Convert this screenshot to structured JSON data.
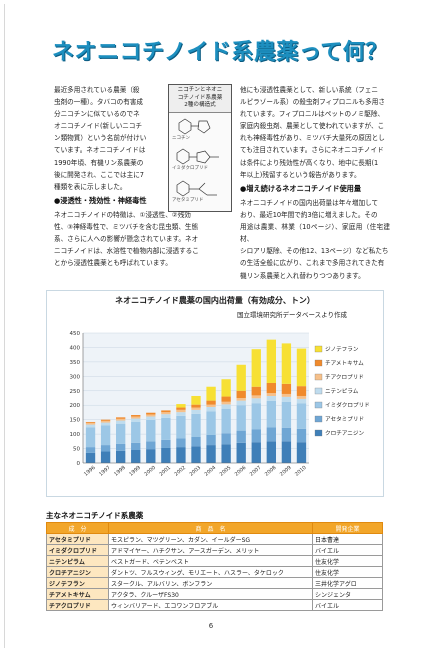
{
  "title": "ネオニコチノイド系農薬って何？",
  "left_paragraph_1": [
    "最近多用されている農薬（殺",
    "虫剤の一種）。タバコの有害成",
    "分ニコチンに似ているのでネ",
    "オニコチノイド(新しいニコチ",
    "ン類物質）という名前が付けい",
    "ています。ネオニコチノイドは",
    "1990年頃、有機リン系農薬の",
    "後に開発され、ここでは主に7",
    "種類を表に示しました。"
  ],
  "figure": {
    "title_lines": [
      "ニコチンとネオニ",
      "コチノイド系農薬",
      "2種の構造式"
    ],
    "labels": [
      "ニコチン",
      "イミダクロプリド",
      "アセタミプリド"
    ]
  },
  "heading_1": "●浸透性・残効性・神経毒性",
  "left_paragraph_2": [
    "ネオニコチノイドの特徴は、①浸透性、②残効",
    "性、③神経毒性で、ミツバチを含む昆虫類、生態",
    "系、さらに人への影響が懸念されています。ネオ",
    "ニコチノイドは、水溶性で植物内部に浸透するこ",
    "とから浸透性農薬とも呼ばれています。"
  ],
  "right_paragraph_1": [
    "他にも浸透性農薬として、新しい系統（フェニ",
    "ルピラゾール系）の殺虫剤フィプロニルも多用さ",
    "れています。フィプロニルはペットのノミ駆除、",
    "家庭内殺虫剤、農薬として使われていますが、こ",
    "れも神経毒性があり、ミツバチ大量死の原因とし",
    "ても注目されています。さらにネオニコチノイド",
    "は条件により残効性が高くなり、地中に長期(1",
    "年以上)残留するという報告があります。"
  ],
  "heading_2": "●増え続けるネオニコチノイド使用量",
  "right_paragraph_2": [
    "ネオニコチノイドの国内出荷量は年々増加して",
    "おり、最近10年間で約3倍に増えました。その",
    "用途は農業、林業（10ページ）、家庭用（住宅建材、",
    "シロアリ駆除、その他12、13ページ）など私たち",
    "の生活全般に広がり、これまで多用されてきた有",
    "機リン系農薬と入れ替わりつつあります。"
  ],
  "chart_data": {
    "type": "bar",
    "stacked": true,
    "title": "ネオニコチノイド農薬の国内出荷量（有効成分、トン）",
    "subtitle": "国立環境研究所データベースより作成",
    "categories": [
      "1996",
      "1997",
      "1998",
      "1999",
      "2000",
      "2001",
      "2002",
      "2003",
      "2004",
      "2005",
      "2006",
      "2007",
      "2008",
      "2009",
      "2010"
    ],
    "ylim": [
      0,
      450
    ],
    "yticks": [
      "0",
      "50",
      "100",
      "150",
      "200",
      "250",
      "300",
      "350",
      "400",
      "450"
    ],
    "grid": true,
    "legend_position": "right",
    "series": [
      {
        "name": "クロチアニジン",
        "color": "#3f7fb8",
        "values": [
          35,
          40,
          42,
          45,
          48,
          52,
          55,
          58,
          62,
          65,
          70,
          72,
          75,
          75,
          72
        ]
      },
      {
        "name": "アセタミプリド",
        "color": "#6fa6d4",
        "values": [
          20,
          22,
          24,
          25,
          27,
          28,
          30,
          32,
          35,
          38,
          42,
          45,
          48,
          47,
          46
        ]
      },
      {
        "name": "イミダクロプリド",
        "color": "#9cc7e6",
        "values": [
          68,
          68,
          70,
          72,
          74,
          76,
          78,
          80,
          82,
          85,
          88,
          90,
          92,
          90,
          88
        ]
      },
      {
        "name": "ニテンピラム",
        "color": "#bfdcee",
        "values": [
          10,
          10,
          11,
          12,
          12,
          13,
          13,
          14,
          15,
          15,
          16,
          17,
          17,
          17,
          16
        ]
      },
      {
        "name": "チアクロプリド",
        "color": "#f6c08a",
        "values": [
          6,
          6,
          6,
          7,
          7,
          7,
          8,
          8,
          8,
          9,
          9,
          10,
          10,
          10,
          10
        ]
      },
      {
        "name": "チアメトキサム",
        "color": "#f08a2c",
        "values": [
          3,
          4,
          5,
          5,
          6,
          6,
          8,
          10,
          14,
          18,
          25,
          30,
          35,
          35,
          34
        ]
      },
      {
        "name": "ジノテフラン",
        "color": "#f7e034",
        "values": [
          0,
          0,
          0,
          0,
          0,
          0,
          12,
          30,
          48,
          60,
          90,
          130,
          150,
          140,
          130
        ]
      }
    ]
  },
  "table": {
    "title": "主なネオニコチノイド系農薬",
    "headers": [
      "成　分",
      "商　品　名",
      "開発企業"
    ],
    "rows": [
      [
        "アセタミプリド",
        "モスピラン、マツグリーン、カダン、イールダーSG",
        "日本曹達"
      ],
      [
        "イミダクロプリド",
        "アドマイヤー、ハチクサン、アースガーデン、メリット",
        "バイエル"
      ],
      [
        "ニテンピラム",
        "ベストガード、ベテンベスト",
        "住友化学"
      ],
      [
        "クロチアニジン",
        "ダントツ、フルスウィング、モリエート、ハスラー、タケロック",
        "住友化学"
      ],
      [
        "ジノテフラン",
        "スタークル、アルバリン、ボンフラン",
        "三井化学アグロ"
      ],
      [
        "チアメトキサム",
        "アクタラ、クルーザFS30",
        "シンジェンタ"
      ],
      [
        "チアクロプリド",
        "ウィンバリアード、エコワンフロアブル",
        "バイエル"
      ]
    ]
  },
  "page_number": "6"
}
